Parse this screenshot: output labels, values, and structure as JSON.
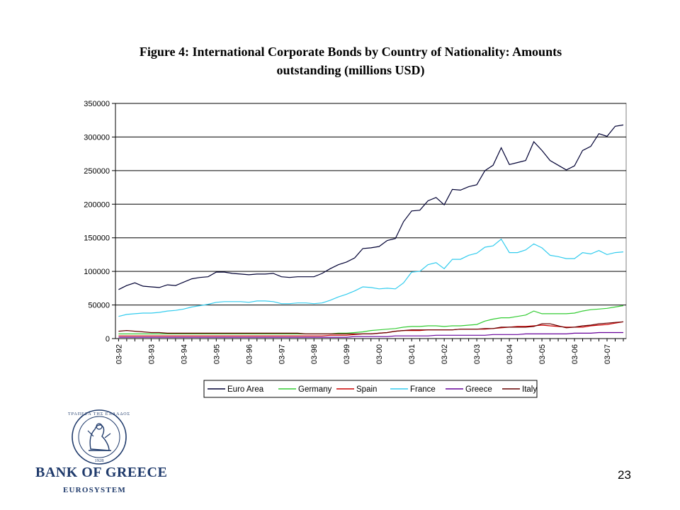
{
  "chart_data": {
    "type": "line",
    "title": "Figure 4: International Corporate Bonds by Country of Nationality: Amounts outstanding (millions USD)",
    "title_lines": [
      "Figure 4: International Corporate Bonds by Country of Nationality: Amounts",
      "outstanding (millions USD)"
    ],
    "xlabel": "",
    "ylabel": "",
    "ylim": [
      0,
      350000
    ],
    "yticks": [
      0,
      50000,
      100000,
      150000,
      200000,
      250000,
      300000,
      350000
    ],
    "ytick_labels": [
      "0",
      "50000",
      "100000",
      "150000",
      "200000",
      "250000",
      "300000",
      "350000"
    ],
    "x_tick_labels": [
      "03-92",
      "03-93",
      "03-94",
      "03-95",
      "03-96",
      "03-97",
      "03-98",
      "03-99",
      "03-00",
      "03-01",
      "03-02",
      "03-03",
      "03-04",
      "03-05",
      "03-06",
      "03-07"
    ],
    "x": [
      "03-92",
      "06-92",
      "09-92",
      "12-92",
      "03-93",
      "06-93",
      "09-93",
      "12-93",
      "03-94",
      "06-94",
      "09-94",
      "12-94",
      "03-95",
      "06-95",
      "09-95",
      "12-95",
      "03-96",
      "06-96",
      "09-96",
      "12-96",
      "03-97",
      "06-97",
      "09-97",
      "12-97",
      "03-98",
      "06-98",
      "09-98",
      "12-98",
      "03-99",
      "06-99",
      "09-99",
      "12-99",
      "03-00",
      "06-00",
      "09-00",
      "12-00",
      "03-01",
      "06-01",
      "09-01",
      "12-01",
      "03-02",
      "06-02",
      "09-02",
      "12-02",
      "03-03",
      "06-03",
      "09-03",
      "12-03",
      "03-04",
      "06-04",
      "09-04",
      "12-04",
      "03-05",
      "06-05",
      "09-05",
      "12-05",
      "03-06",
      "06-06",
      "09-06",
      "12-06",
      "03-07",
      "06-07",
      "09-07"
    ],
    "grid": "horizontal",
    "legend_position": "bottom",
    "series": [
      {
        "name": "Euro Area",
        "color": "#000033",
        "values": [
          73000,
          79000,
          83000,
          78000,
          77000,
          76000,
          80000,
          79000,
          84000,
          89000,
          91000,
          92000,
          99000,
          99000,
          97000,
          96000,
          95000,
          96000,
          96000,
          97000,
          92000,
          91000,
          92000,
          92000,
          92000,
          97000,
          104000,
          110000,
          114000,
          120000,
          134000,
          135000,
          137000,
          146000,
          149000,
          174000,
          190000,
          191000,
          205000,
          210000,
          199000,
          222000,
          221000,
          226000,
          229000,
          250000,
          258000,
          284000,
          259000,
          262000,
          265000,
          293000,
          280000,
          265000,
          258000,
          251000,
          257000,
          280000,
          286000,
          305000,
          301000,
          316000,
          318000
        ]
      },
      {
        "name": "Germany",
        "color": "#33cc33",
        "values": [
          7000,
          7000,
          7000,
          7000,
          7000,
          7000,
          7000,
          7000,
          7000,
          7000,
          7000,
          7000,
          7000,
          7000,
          7000,
          7000,
          7000,
          7000,
          7000,
          7000,
          7000,
          7000,
          7000,
          7000,
          7000,
          7000,
          7000,
          8000,
          8000,
          9000,
          10000,
          12000,
          13000,
          14000,
          15000,
          17000,
          18000,
          18000,
          19000,
          19000,
          18000,
          19000,
          19000,
          20000,
          21000,
          26000,
          29000,
          31000,
          31000,
          33000,
          35000,
          41000,
          37000,
          37000,
          37000,
          37000,
          38000,
          41000,
          43000,
          44000,
          45000,
          47000,
          49000
        ]
      },
      {
        "name": "Spain",
        "color": "#cc0000",
        "values": [
          4000,
          4000,
          4000,
          4000,
          4000,
          4000,
          4000,
          4000,
          4000,
          4000,
          4000,
          4000,
          4000,
          4000,
          4000,
          4000,
          4000,
          4000,
          4000,
          4000,
          4000,
          4000,
          4000,
          4000,
          4000,
          4000,
          5000,
          5000,
          5000,
          6000,
          7000,
          7000,
          8000,
          9000,
          11000,
          12000,
          12000,
          12000,
          13000,
          13000,
          13000,
          13000,
          14000,
          14000,
          14000,
          14000,
          15000,
          16000,
          17000,
          18000,
          18000,
          19000,
          20000,
          19000,
          18000,
          17000,
          17000,
          17000,
          19000,
          20000,
          21000,
          23000,
          25000
        ]
      },
      {
        "name": "France",
        "color": "#33ccee",
        "values": [
          33000,
          36000,
          37000,
          38000,
          38000,
          39000,
          41000,
          42000,
          44000,
          47000,
          49000,
          51000,
          54000,
          55000,
          55000,
          55000,
          54000,
          56000,
          56000,
          55000,
          52000,
          52000,
          53000,
          53000,
          52000,
          53000,
          57000,
          62000,
          66000,
          71000,
          77000,
          76000,
          74000,
          75000,
          74000,
          83000,
          99000,
          100000,
          110000,
          113000,
          104000,
          118000,
          118000,
          124000,
          127000,
          136000,
          138000,
          148000,
          128000,
          128000,
          132000,
          141000,
          135000,
          124000,
          122000,
          119000,
          119000,
          128000,
          126000,
          131000,
          125000,
          128000,
          129000
        ]
      },
      {
        "name": "Greece",
        "color": "#660099",
        "values": [
          2000,
          2000,
          2000,
          2000,
          2000,
          2000,
          2000,
          2000,
          2000,
          2000,
          2000,
          2000,
          2000,
          2000,
          2000,
          2000,
          2000,
          2000,
          2000,
          2000,
          2000,
          2000,
          2000,
          2000,
          2000,
          2000,
          2000,
          2000,
          2000,
          3000,
          3000,
          3000,
          3000,
          3000,
          4000,
          4000,
          4000,
          4000,
          4000,
          5000,
          5000,
          5000,
          5000,
          5000,
          5000,
          5000,
          6000,
          6000,
          6000,
          6000,
          7000,
          7000,
          7000,
          7000,
          7000,
          7000,
          8000,
          8000,
          8000,
          9000,
          9000,
          9000,
          9000
        ]
      },
      {
        "name": "Italy",
        "color": "#660000",
        "values": [
          11000,
          12000,
          11000,
          10000,
          9000,
          9000,
          8000,
          8000,
          8000,
          8000,
          8000,
          8000,
          8000,
          8000,
          8000,
          8000,
          8000,
          8000,
          8000,
          8000,
          8000,
          8000,
          8000,
          7000,
          7000,
          7000,
          7000,
          7000,
          7000,
          7000,
          7000,
          7000,
          8000,
          9000,
          11000,
          12000,
          13000,
          13000,
          13000,
          13000,
          13000,
          13000,
          14000,
          14000,
          14000,
          15000,
          15000,
          17000,
          17000,
          17000,
          17000,
          18000,
          22000,
          22000,
          19000,
          16000,
          17000,
          19000,
          20000,
          22000,
          23000,
          24000,
          25000
        ]
      }
    ]
  },
  "page": {
    "page_number": "23"
  },
  "logo": {
    "name": "BANK OF GREECE",
    "subtitle": "EUROSYSTEM",
    "seal_text": "ΤΡΑΠΕΖΑ ΤΗΣ ΕΛΛΑΔΟΣ",
    "seal_year": "1928",
    "color": "#1f3a6b"
  }
}
